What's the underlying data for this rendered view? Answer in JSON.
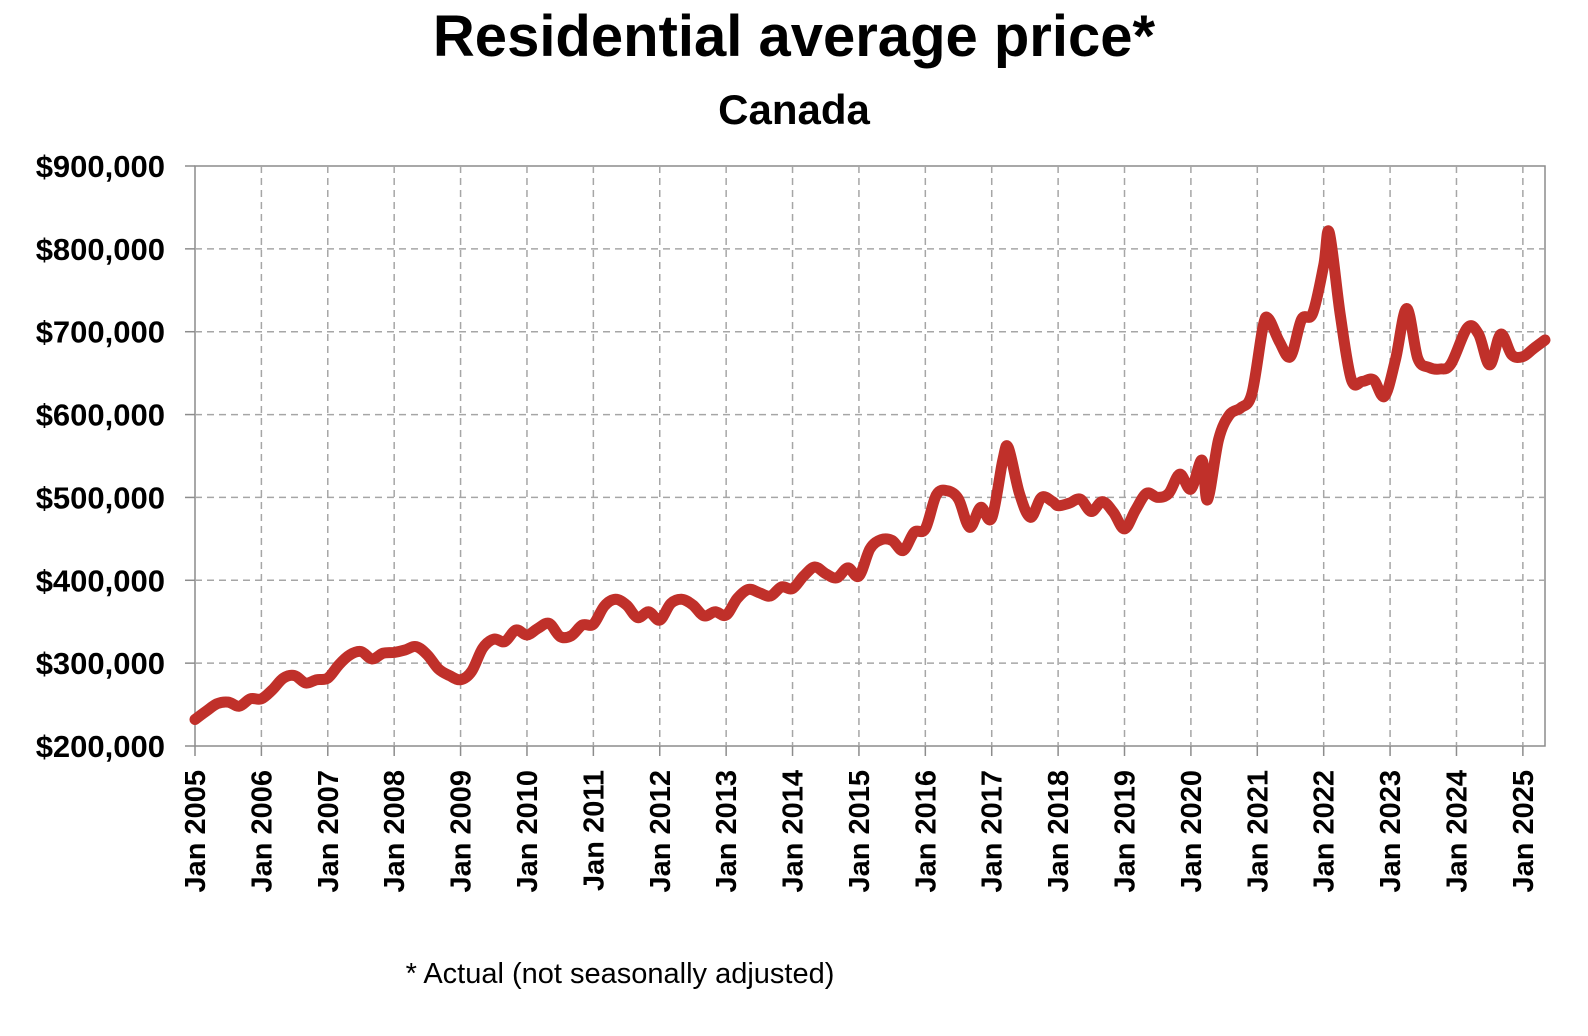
{
  "chart_data": {
    "type": "line",
    "title": "Residential average price*",
    "subtitle": "Canada",
    "footnote": "* Actual (not seasonally adjusted)",
    "ylim": [
      200000,
      900000
    ],
    "y_ticks": [
      200000,
      300000,
      400000,
      500000,
      600000,
      700000,
      800000,
      900000
    ],
    "y_tick_labels": [
      "$200,000",
      "$300,000",
      "$400,000",
      "$500,000",
      "$600,000",
      "$700,000",
      "$800,000",
      "$900,000"
    ],
    "x_tick_labels": [
      "Jan 2005",
      "Jan 2006",
      "Jan 2007",
      "Jan 2008",
      "Jan 2009",
      "Jan 2010",
      "Jan 2011",
      "Jan 2012",
      "Jan 2013",
      "Jan 2014",
      "Jan 2015",
      "Jan 2016",
      "Jan 2017",
      "Jan 2018",
      "Jan 2019",
      "Jan 2020",
      "Jan 2021",
      "Jan 2022",
      "Jan 2023",
      "Jan 2024",
      "Jan 2025"
    ],
    "xlim": [
      "2005-01",
      "2025-05"
    ],
    "grid": true,
    "line_color": "#c0302a",
    "series": [
      {
        "points": [
          [
            "2005-01",
            232000
          ],
          [
            "2005-03",
            242000
          ],
          [
            "2005-05",
            251000
          ],
          [
            "2005-07",
            253000
          ],
          [
            "2005-09",
            248000
          ],
          [
            "2005-11",
            257000
          ],
          [
            "2006-01",
            257000
          ],
          [
            "2006-03",
            268000
          ],
          [
            "2006-05",
            282000
          ],
          [
            "2006-07",
            285000
          ],
          [
            "2006-09",
            276000
          ],
          [
            "2006-11",
            280000
          ],
          [
            "2007-01",
            282000
          ],
          [
            "2007-03",
            298000
          ],
          [
            "2007-05",
            310000
          ],
          [
            "2007-07",
            314000
          ],
          [
            "2007-09",
            305000
          ],
          [
            "2007-11",
            312000
          ],
          [
            "2008-01",
            313000
          ],
          [
            "2008-03",
            316000
          ],
          [
            "2008-05",
            320000
          ],
          [
            "2008-07",
            310000
          ],
          [
            "2008-09",
            293000
          ],
          [
            "2008-11",
            285000
          ],
          [
            "2009-01",
            280000
          ],
          [
            "2009-03",
            290000
          ],
          [
            "2009-05",
            318000
          ],
          [
            "2009-07",
            329000
          ],
          [
            "2009-09",
            326000
          ],
          [
            "2009-11",
            340000
          ],
          [
            "2010-01",
            334000
          ],
          [
            "2010-03",
            342000
          ],
          [
            "2010-05",
            348000
          ],
          [
            "2010-07",
            332000
          ],
          [
            "2010-09",
            333000
          ],
          [
            "2010-11",
            346000
          ],
          [
            "2011-01",
            347000
          ],
          [
            "2011-03",
            369000
          ],
          [
            "2011-05",
            377000
          ],
          [
            "2011-07",
            370000
          ],
          [
            "2011-09",
            355000
          ],
          [
            "2011-11",
            362000
          ],
          [
            "2012-01",
            352000
          ],
          [
            "2012-03",
            372000
          ],
          [
            "2012-05",
            377000
          ],
          [
            "2012-07",
            370000
          ],
          [
            "2012-09",
            357000
          ],
          [
            "2012-11",
            362000
          ],
          [
            "2013-01",
            358000
          ],
          [
            "2013-03",
            378000
          ],
          [
            "2013-05",
            389000
          ],
          [
            "2013-07",
            385000
          ],
          [
            "2013-09",
            381000
          ],
          [
            "2013-11",
            392000
          ],
          [
            "2014-01",
            390000
          ],
          [
            "2014-03",
            405000
          ],
          [
            "2014-05",
            416000
          ],
          [
            "2014-07",
            408000
          ],
          [
            "2014-09",
            403000
          ],
          [
            "2014-11",
            415000
          ],
          [
            "2015-01",
            405000
          ],
          [
            "2015-03",
            438000
          ],
          [
            "2015-05",
            449000
          ],
          [
            "2015-07",
            448000
          ],
          [
            "2015-09",
            436000
          ],
          [
            "2015-11",
            458000
          ],
          [
            "2016-01",
            462000
          ],
          [
            "2016-03",
            503000
          ],
          [
            "2016-05",
            508000
          ],
          [
            "2016-07",
            498000
          ],
          [
            "2016-09",
            464000
          ],
          [
            "2016-11",
            488000
          ],
          [
            "2017-01",
            475000
          ],
          [
            "2017-03",
            545000
          ],
          [
            "2017-04",
            560000
          ],
          [
            "2017-06",
            505000
          ],
          [
            "2017-08",
            476000
          ],
          [
            "2017-10",
            500000
          ],
          [
            "2017-12",
            495000
          ],
          [
            "2018-01",
            490000
          ],
          [
            "2018-03",
            493000
          ],
          [
            "2018-05",
            498000
          ],
          [
            "2018-07",
            483000
          ],
          [
            "2018-09",
            495000
          ],
          [
            "2018-11",
            482000
          ],
          [
            "2019-01",
            462000
          ],
          [
            "2019-03",
            485000
          ],
          [
            "2019-05",
            505000
          ],
          [
            "2019-07",
            500000
          ],
          [
            "2019-09",
            505000
          ],
          [
            "2019-11",
            528000
          ],
          [
            "2020-01",
            510000
          ],
          [
            "2020-03",
            545000
          ],
          [
            "2020-04",
            497000
          ],
          [
            "2020-06",
            570000
          ],
          [
            "2020-08",
            600000
          ],
          [
            "2020-10",
            608000
          ],
          [
            "2020-12",
            625000
          ],
          [
            "2021-02",
            705000
          ],
          [
            "2021-03",
            716000
          ],
          [
            "2021-05",
            688000
          ],
          [
            "2021-07",
            670000
          ],
          [
            "2021-09",
            715000
          ],
          [
            "2021-11",
            722000
          ],
          [
            "2022-01",
            780000
          ],
          [
            "2022-02",
            820000
          ],
          [
            "2022-04",
            720000
          ],
          [
            "2022-06",
            642000
          ],
          [
            "2022-08",
            640000
          ],
          [
            "2022-10",
            642000
          ],
          [
            "2022-12",
            622000
          ],
          [
            "2023-02",
            667000
          ],
          [
            "2023-04",
            728000
          ],
          [
            "2023-06",
            668000
          ],
          [
            "2023-08",
            657000
          ],
          [
            "2023-10",
            655000
          ],
          [
            "2023-12",
            661000
          ],
          [
            "2024-03",
            705000
          ],
          [
            "2024-05",
            697000
          ],
          [
            "2024-07",
            660000
          ],
          [
            "2024-09",
            697000
          ],
          [
            "2024-11",
            672000
          ],
          [
            "2025-01",
            670000
          ],
          [
            "2025-03",
            680000
          ],
          [
            "2025-05",
            690000
          ]
        ]
      }
    ]
  }
}
